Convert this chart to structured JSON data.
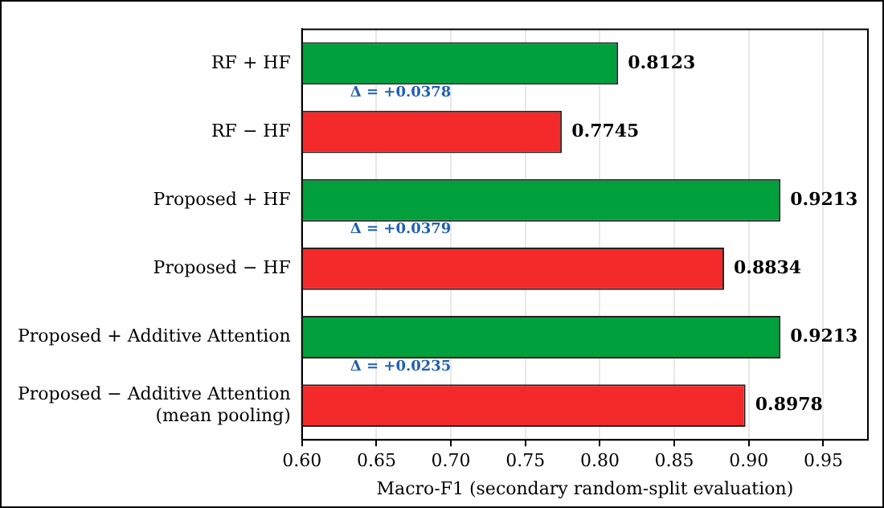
{
  "chart_data": {
    "type": "bar",
    "orientation": "horizontal",
    "xlabel": "Macro-F1 (secondary random-split evaluation)",
    "categories": [
      "RF + HF",
      "RF − HF",
      "Proposed + HF",
      "Proposed − HF",
      "Proposed + Additive Attention",
      "Proposed − Additive Attention\n(mean pooling)"
    ],
    "values": [
      0.8123,
      0.7745,
      0.9213,
      0.8834,
      0.9213,
      0.8978
    ],
    "colors": [
      "#00a03c",
      "#f42a2a",
      "#00a03c",
      "#f42a2a",
      "#00a03c",
      "#f42a2a"
    ],
    "xlim": [
      0.6,
      0.98
    ],
    "xticks": [
      {
        "value": 0.6,
        "label": "0.60"
      },
      0.65,
      {
        "value": 0.7,
        "label": "0.70"
      },
      0.75,
      {
        "value": 0.8,
        "label": "0.80"
      },
      0.85,
      {
        "value": 0.9,
        "label": "0.90"
      },
      0.95
    ],
    "grid": "x",
    "data_labels": true,
    "annotations": [
      "Δ = +0.0378",
      "Δ = +0.0379",
      "Δ = +0.0235"
    ]
  }
}
